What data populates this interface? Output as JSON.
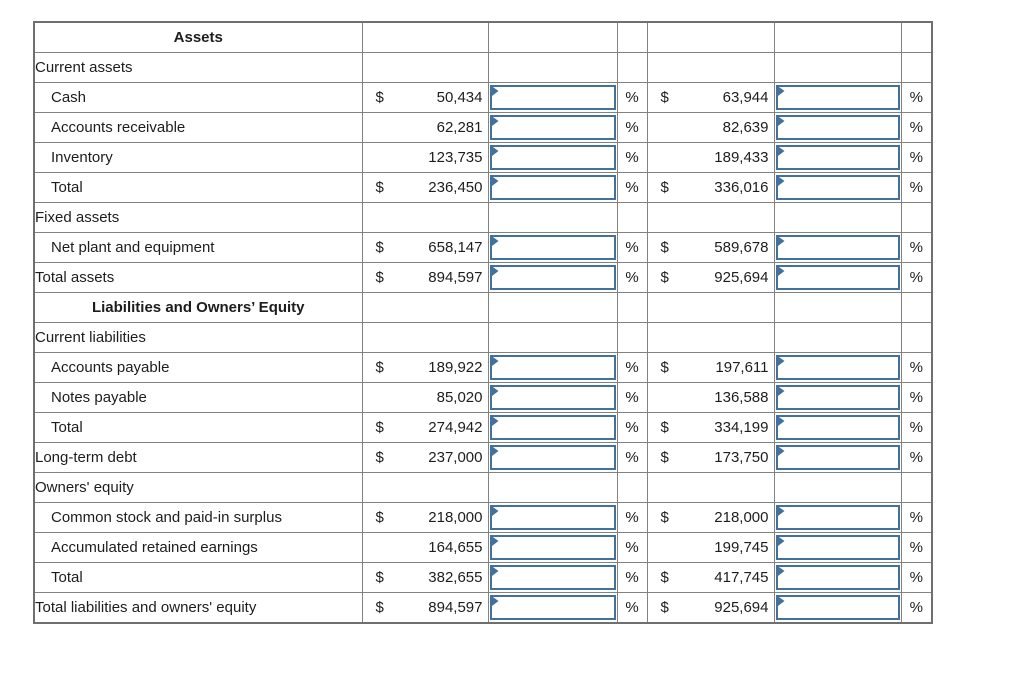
{
  "symbols": {
    "dollar": "$",
    "percent": "%"
  },
  "colors": {
    "input_border": "#41719C",
    "input_flag": "#41719C",
    "gridline": "#828282",
    "total_rule": "#000000"
  },
  "table": {
    "rows": [
      {
        "label": "Assets",
        "type": "header"
      },
      {
        "label": "Current assets",
        "type": "section"
      },
      {
        "label": "Cash",
        "type": "item",
        "indent": true,
        "dollar": true,
        "amount1": "50,434",
        "amount2": "63,944",
        "rule_top": true
      },
      {
        "label": "Accounts receivable",
        "type": "item",
        "indent": true,
        "dollar": false,
        "amount1": "62,281",
        "amount2": "82,639"
      },
      {
        "label": "Inventory",
        "type": "item",
        "indent": true,
        "dollar": false,
        "amount1": "123,735",
        "amount2": "189,433"
      },
      {
        "label": "Total",
        "type": "total",
        "indent": true,
        "dollar": true,
        "amount1": "236,450",
        "amount2": "336,016",
        "rule_top": true
      },
      {
        "label": "Fixed assets",
        "type": "section"
      },
      {
        "label": "Net plant and equipment",
        "type": "item",
        "indent": true,
        "dollar": true,
        "amount1": "658,147",
        "amount2": "589,678",
        "rule_top": true
      },
      {
        "label": "Total assets",
        "type": "grand-total",
        "indent": false,
        "dollar": true,
        "amount1": "894,597",
        "amount2": "925,694",
        "rule_top": true,
        "double_bottom": true
      },
      {
        "label": "Liabilities and Owners’ Equity",
        "type": "header"
      },
      {
        "label": "Current liabilities",
        "type": "section"
      },
      {
        "label": "Accounts payable",
        "type": "item",
        "indent": true,
        "dollar": true,
        "amount1": "189,922",
        "amount2": "197,611",
        "rule_top": true
      },
      {
        "label": "Notes payable",
        "type": "item",
        "indent": true,
        "dollar": false,
        "amount1": "85,020",
        "amount2": "136,588"
      },
      {
        "label": "Total",
        "type": "total",
        "indent": true,
        "dollar": true,
        "amount1": "274,942",
        "amount2": "334,199",
        "rule_top": true
      },
      {
        "label": "Long-term debt",
        "type": "item",
        "indent": false,
        "dollar": true,
        "amount1": "237,000",
        "amount2": "173,750"
      },
      {
        "label": "Owners' equity",
        "type": "section"
      },
      {
        "label": "Common stock and paid-in surplus",
        "type": "item",
        "indent": true,
        "dollar": true,
        "amount1": "218,000",
        "amount2": "218,000",
        "rule_top": true
      },
      {
        "label": "Accumulated retained earnings",
        "type": "item",
        "indent": true,
        "dollar": false,
        "amount1": "164,655",
        "amount2": "199,745"
      },
      {
        "label": "Total",
        "type": "total",
        "indent": true,
        "dollar": true,
        "amount1": "382,655",
        "amount2": "417,745",
        "rule_top": true
      },
      {
        "label": "Total liabilities and owners' equity",
        "type": "grand-total",
        "indent": false,
        "dollar": true,
        "amount1": "894,597",
        "amount2": "925,694",
        "rule_top": true,
        "double_bottom": true
      }
    ],
    "percent_inputs": {
      "value": "",
      "placeholder": ""
    }
  }
}
